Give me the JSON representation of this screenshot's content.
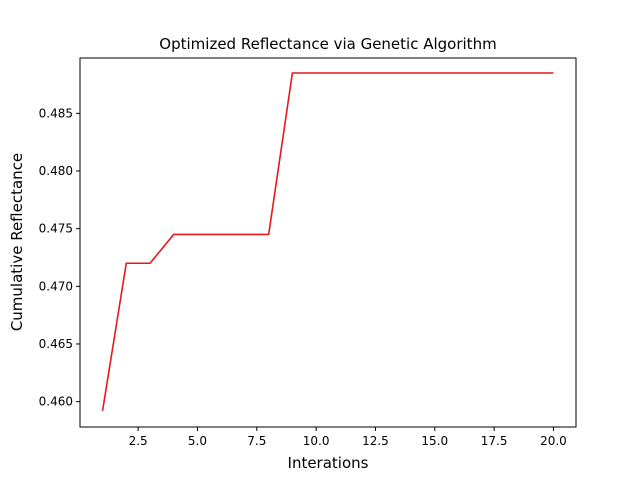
{
  "chart_data": {
    "type": "line",
    "title": "Optimized Reflectance via Genetic Algorithm",
    "xlabel": "Interations",
    "ylabel": "Cumulative Reflectance",
    "xlim": [
      0.05,
      20.95
    ],
    "ylim": [
      0.4578,
      0.4898
    ],
    "grid": false,
    "x_ticks": [
      2.5,
      5.0,
      7.5,
      10.0,
      12.5,
      15.0,
      17.5,
      20.0
    ],
    "x_tick_labels": [
      "2.5",
      "5.0",
      "7.5",
      "10.0",
      "12.5",
      "15.0",
      "17.5",
      "20.0"
    ],
    "y_ticks": [
      0.46,
      0.465,
      0.47,
      0.475,
      0.48,
      0.485
    ],
    "y_tick_labels": [
      "0.460",
      "0.465",
      "0.470",
      "0.475",
      "0.480",
      "0.485"
    ],
    "series": [
      {
        "color": "#e31a1c",
        "x": [
          1,
          2,
          3,
          4,
          5,
          6,
          7,
          8,
          9,
          10,
          11,
          12,
          13,
          14,
          15,
          16,
          17,
          18,
          19,
          20
        ],
        "y": [
          0.4592,
          0.472,
          0.472,
          0.4745,
          0.4745,
          0.4745,
          0.4745,
          0.4745,
          0.4885,
          0.4885,
          0.4885,
          0.4885,
          0.4885,
          0.4885,
          0.4885,
          0.4885,
          0.4885,
          0.4885,
          0.4885,
          0.4885
        ]
      }
    ]
  }
}
